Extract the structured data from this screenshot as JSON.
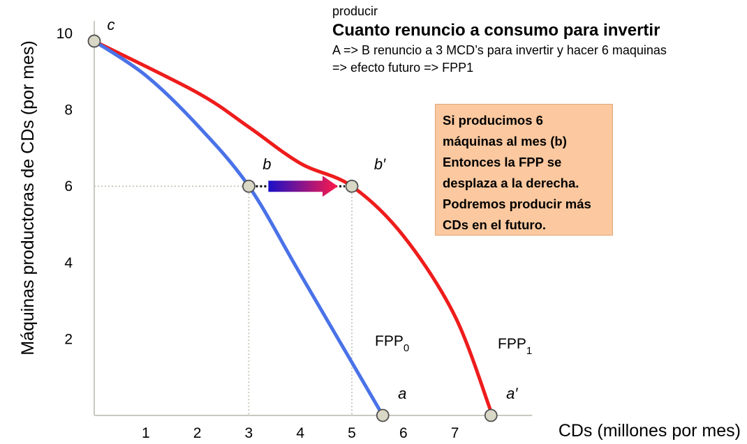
{
  "header": {
    "prev_word": "producir",
    "title": "Cuanto renuncio a consumo para invertir",
    "line1": "A => B renuncio a 3 MCD’s para invertir y hacer 6 maquinas",
    "line2": "=> efecto futuro => FPP1"
  },
  "note": {
    "text": "Si producimos 6 máquinas al mes (b) Entonces la FPP se desplaza a la derecha. Podremos producir más CDs en el futuro.",
    "lines": [
      "Si producimos 6",
      "máquinas al mes (b)",
      "Entonces la FPP se",
      "desplaza a la derecha.",
      "Podremos producir más",
      "CDs en el futuro."
    ],
    "background": "#fbc89f"
  },
  "chart_data": {
    "type": "line",
    "xlabel": "CDs (millones por mes)",
    "ylabel": "Máquinas productoras de CDs (por mes)",
    "xlim": [
      0,
      8.5
    ],
    "ylim": [
      0,
      10.4
    ],
    "x_ticks": [
      1,
      2,
      3,
      4,
      5,
      6,
      7
    ],
    "x_tick_labels": [
      "1",
      "2",
      "3",
      "4",
      "5",
      "6",
      "7"
    ],
    "y_ticks": [
      2,
      4,
      6,
      8,
      10
    ],
    "y_tick_labels": [
      "2",
      "4",
      "6",
      "8",
      "10"
    ],
    "grid": false,
    "series": [
      {
        "name": "FPP0",
        "label_main": "FPP",
        "label_sub": "0",
        "color": "#4a72e8",
        "points": [
          [
            0,
            9.8
          ],
          [
            1,
            8.9
          ],
          [
            2,
            7.6
          ],
          [
            3,
            6
          ],
          [
            4,
            3.7
          ],
          [
            5.6,
            0
          ]
        ]
      },
      {
        "name": "FPP1",
        "label_main": "FPP",
        "label_sub": "1",
        "color": "#ee1c1c",
        "points": [
          [
            0,
            9.8
          ],
          [
            2,
            8.45
          ],
          [
            3,
            7.55
          ],
          [
            4,
            6.6
          ],
          [
            5,
            6
          ],
          [
            6,
            4.7
          ],
          [
            7,
            2.6
          ],
          [
            7.7,
            0.1
          ]
        ]
      }
    ],
    "labeled_points": [
      {
        "label": "c",
        "x": 0,
        "y": 9.8
      },
      {
        "label": "b",
        "x": 3,
        "y": 6
      },
      {
        "label": "b'",
        "x": 5,
        "y": 6
      },
      {
        "label": "a",
        "x": 5.6,
        "y": 0
      },
      {
        "label": "a'",
        "x": 7.7,
        "y": 0
      }
    ],
    "shift_arrow": {
      "from": [
        3,
        6
      ],
      "to": [
        5,
        6
      ],
      "color_start": "#1a10c8",
      "color_end": "#ff1a4a"
    },
    "colors": {
      "marker_fill": "#d9d7c6",
      "marker_stroke": "#505050",
      "guide": "#c9c9bf"
    }
  }
}
